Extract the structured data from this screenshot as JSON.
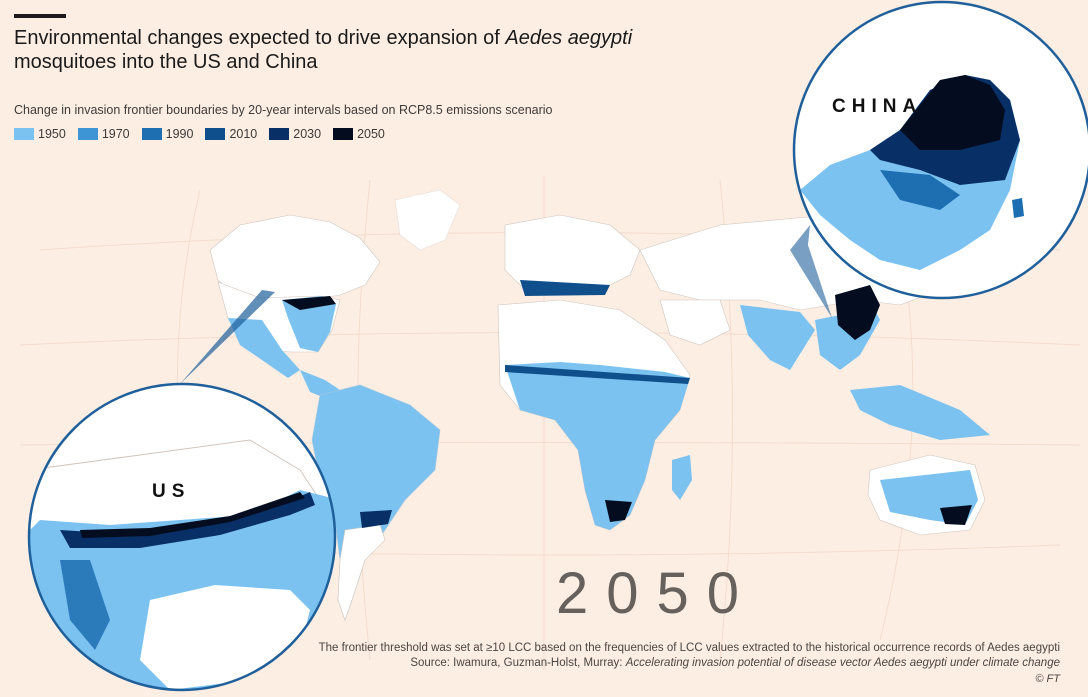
{
  "title": {
    "part1": "Environmental changes expected to drive expansion of ",
    "species": "Aedes aegypti",
    "part2": "mosquitoes into the US and China"
  },
  "subtitle": "Change in invasion frontier boundaries by 20-year intervals based on RCP8.5 emissions scenario",
  "legend": [
    {
      "label": "1950",
      "color": "#7bc2f0"
    },
    {
      "label": "1970",
      "color": "#3d95d6"
    },
    {
      "label": "1990",
      "color": "#1d6fb1"
    },
    {
      "label": "2010",
      "color": "#0f4f8c"
    },
    {
      "label": "2030",
      "color": "#082f66"
    },
    {
      "label": "2050",
      "color": "#040d1f"
    }
  ],
  "year_label": "2050",
  "insets": {
    "us_label": "US",
    "china_label": "CHINA"
  },
  "footnote": {
    "line1": "The frontier threshold was set at ≥10 LCC based on the frequencies of LCC values extracted to the historical occurrence records of Aedes aegypti",
    "source_prefix": "Source: Iwamura, Guzman-Holst, Murray: ",
    "source_title": "Accelerating invasion potential of disease vector Aedes aegypti under climate change",
    "credit": "© FT"
  },
  "colors": {
    "background": "#fdeee4",
    "land": "#ffffff",
    "border": "#cfc6bf",
    "inset_ring": "#1f5f9a"
  }
}
